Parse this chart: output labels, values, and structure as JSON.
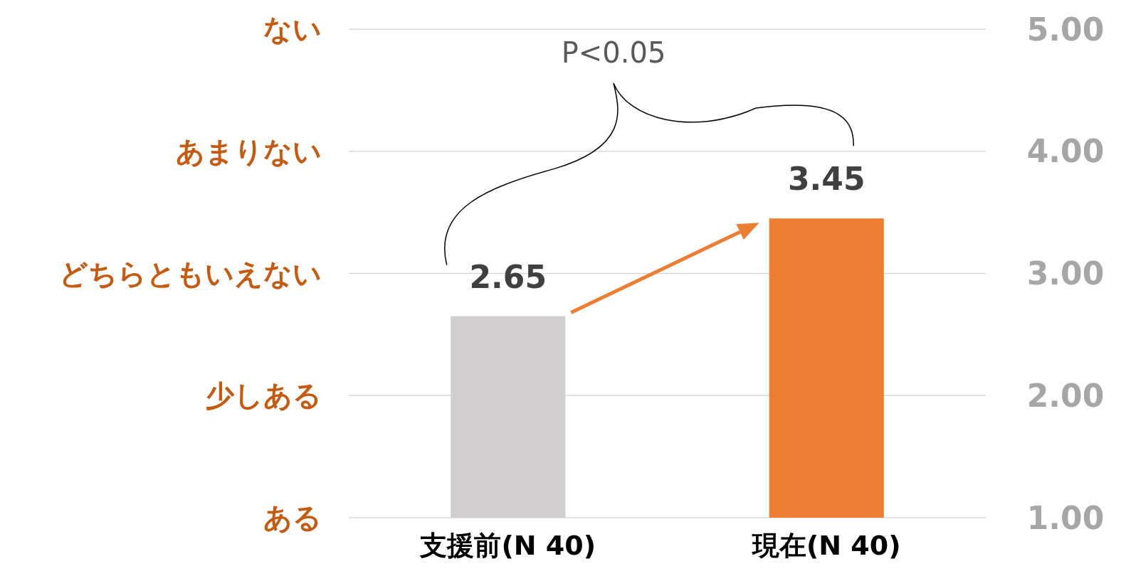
{
  "chart_data": {
    "type": "bar",
    "categories": [
      "支援前(N 40)",
      "現在(N 40)"
    ],
    "values": [
      2.65,
      3.45
    ],
    "colors": [
      "#d0cecf",
      "#ed7d31"
    ],
    "ylim": [
      1,
      5
    ],
    "yticks": [
      {
        "value": 1,
        "label": "1.00"
      },
      {
        "value": 2,
        "label": "2.00"
      },
      {
        "value": 3,
        "label": "3.00"
      },
      {
        "value": 4,
        "label": "4.00"
      },
      {
        "value": 5,
        "label": "5.00"
      }
    ],
    "grid": "y",
    "data_labels": true,
    "annotations": [
      "P<0.05",
      "ある",
      "少しある",
      "どちらともいえない",
      "あまりない",
      "ない"
    ]
  }
}
